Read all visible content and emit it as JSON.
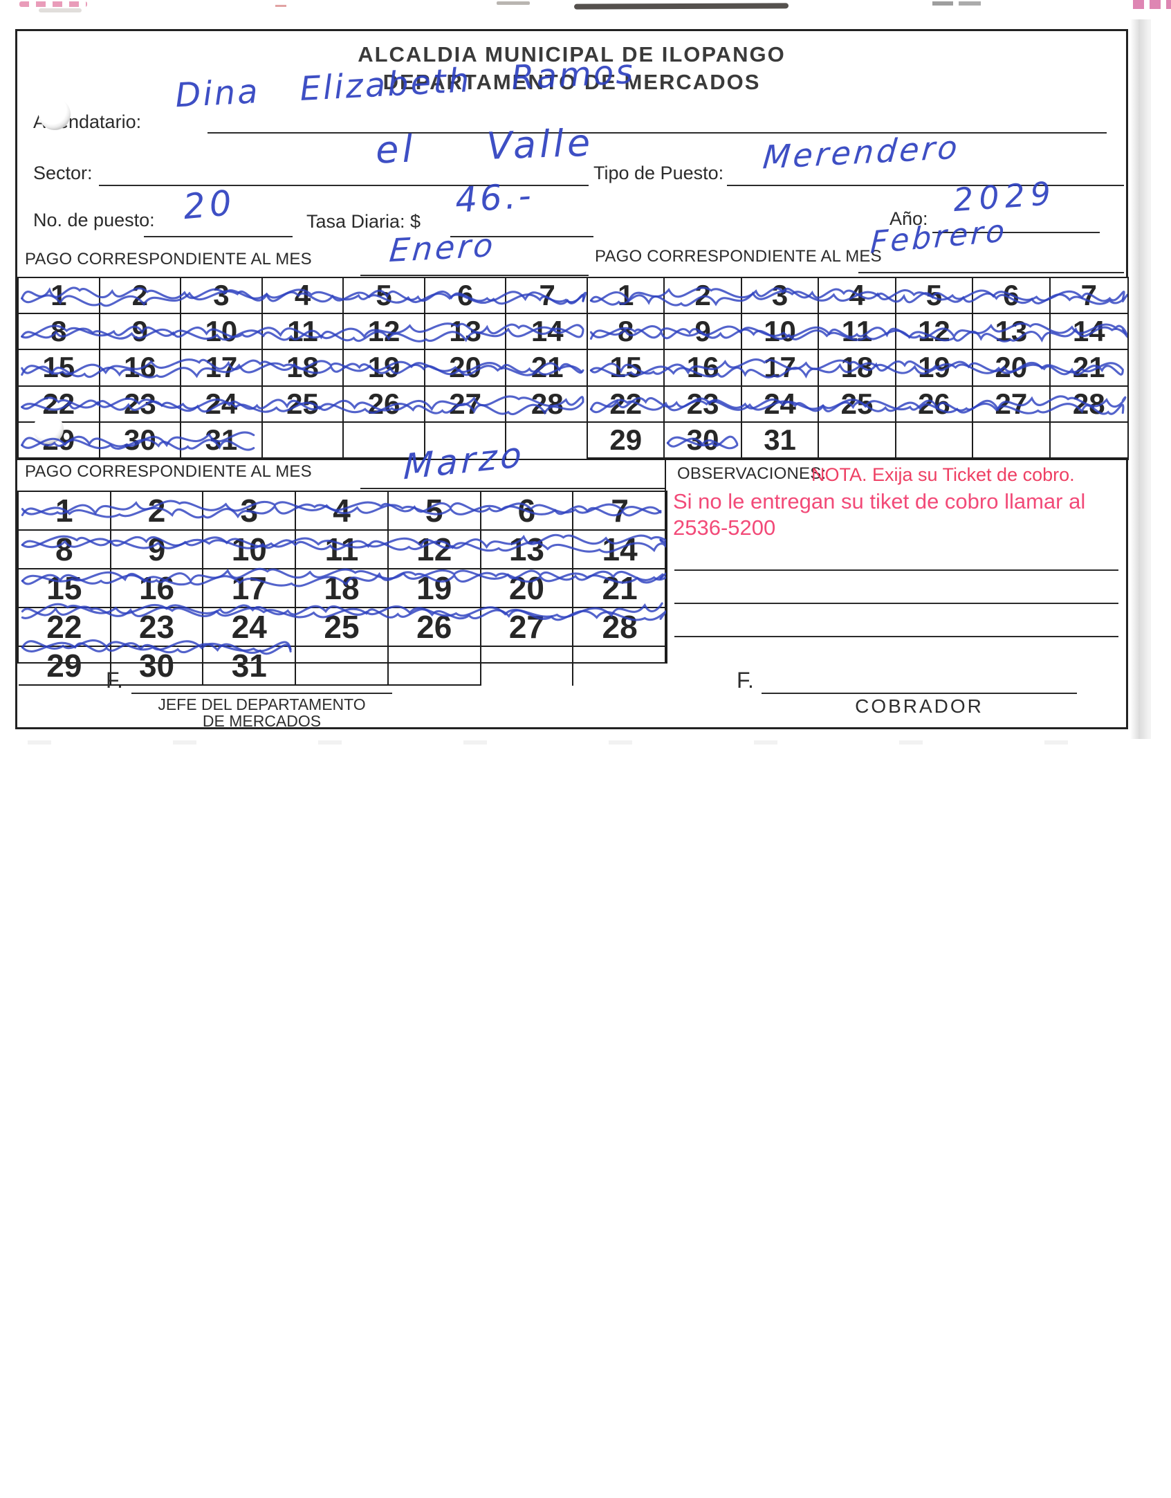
{
  "colors": {
    "ink_blue": "#2e41c0",
    "note_red": "#ee3f63",
    "note_pink": "#f24a78"
  },
  "header": {
    "title1": "ALCALDIA MUNICIPAL DE ILOPANGO",
    "title2": "DEPARTAMENTO DE MERCADOS"
  },
  "fields": {
    "arrendatario": {
      "label": "Arrendatario:",
      "value": "Dina Elizabeth Ramos"
    },
    "sector": {
      "label": "Sector:",
      "value": "el Valle"
    },
    "tipo_puesto": {
      "label": "Tipo de Puesto:",
      "value": "Merendero"
    },
    "no_puesto": {
      "label": "No. de puesto:",
      "value": "20"
    },
    "tasa_diaria": {
      "label": "Tasa Diaria: $",
      "value": "46.-"
    },
    "anio": {
      "label": "Año:",
      "value": "2029"
    }
  },
  "calendars": [
    {
      "id": "enero",
      "label": "PAGO CORRESPONDIENTE AL MES",
      "month": "Enero",
      "rows": [
        [
          [
            "1",
            1
          ],
          [
            "2",
            1
          ],
          [
            "3",
            1
          ],
          [
            "4",
            1
          ],
          [
            "5",
            1
          ],
          [
            "6",
            1
          ],
          [
            "7",
            1
          ]
        ],
        [
          [
            "8",
            1
          ],
          [
            "9",
            1
          ],
          [
            "10",
            1
          ],
          [
            "11",
            1
          ],
          [
            "12",
            1
          ],
          [
            "13",
            1
          ],
          [
            "14",
            1
          ]
        ],
        [
          [
            "15",
            1
          ],
          [
            "16",
            1
          ],
          [
            "17",
            1
          ],
          [
            "18",
            1
          ],
          [
            "19",
            1
          ],
          [
            "20",
            1
          ],
          [
            "21",
            1
          ]
        ],
        [
          [
            "22",
            1
          ],
          [
            "23",
            1
          ],
          [
            "24",
            1
          ],
          [
            "25",
            1
          ],
          [
            "26",
            1
          ],
          [
            "27",
            1
          ],
          [
            "28",
            1
          ]
        ],
        [
          [
            "29",
            1
          ],
          [
            "30",
            1
          ],
          [
            "31",
            1
          ],
          [
            "",
            0
          ],
          [
            "",
            0
          ],
          [
            "",
            0
          ],
          [
            "",
            0
          ]
        ]
      ]
    },
    {
      "id": "febrero",
      "label": "PAGO CORRESPONDIENTE AL MES",
      "month": "Febrero",
      "rows": [
        [
          [
            "1",
            1
          ],
          [
            "2",
            1
          ],
          [
            "3",
            1
          ],
          [
            "4",
            1
          ],
          [
            "5",
            1
          ],
          [
            "6",
            1
          ],
          [
            "7",
            1
          ]
        ],
        [
          [
            "8",
            1
          ],
          [
            "9",
            1
          ],
          [
            "10",
            1
          ],
          [
            "11",
            1
          ],
          [
            "12",
            1
          ],
          [
            "13",
            1
          ],
          [
            "14",
            1
          ]
        ],
        [
          [
            "15",
            1
          ],
          [
            "16",
            1
          ],
          [
            "17",
            1
          ],
          [
            "18",
            1
          ],
          [
            "19",
            1
          ],
          [
            "20",
            1
          ],
          [
            "21",
            1
          ]
        ],
        [
          [
            "22",
            1
          ],
          [
            "23",
            1
          ],
          [
            "24",
            1
          ],
          [
            "25",
            1
          ],
          [
            "26",
            1
          ],
          [
            "27",
            1
          ],
          [
            "28",
            1
          ]
        ],
        [
          [
            "29",
            0
          ],
          [
            "30",
            1
          ],
          [
            "31",
            0
          ],
          [
            "",
            0
          ],
          [
            "",
            0
          ],
          [
            "",
            0
          ],
          [
            "",
            0
          ]
        ]
      ]
    },
    {
      "id": "marzo",
      "label": "PAGO CORRESPONDIENTE AL MES",
      "month": "Marzo",
      "rows": [
        [
          [
            "1",
            1
          ],
          [
            "2",
            1
          ],
          [
            "3",
            1
          ],
          [
            "4",
            1
          ],
          [
            "5",
            1
          ],
          [
            "6",
            1
          ],
          [
            "7",
            1
          ]
        ],
        [
          [
            "8",
            1
          ],
          [
            "9",
            1
          ],
          [
            "10",
            1
          ],
          [
            "11",
            1
          ],
          [
            "12",
            1
          ],
          [
            "13",
            1
          ],
          [
            "14",
            1
          ]
        ],
        [
          [
            "15",
            1
          ],
          [
            "16",
            1
          ],
          [
            "17",
            1
          ],
          [
            "18",
            1
          ],
          [
            "19",
            1
          ],
          [
            "20",
            1
          ],
          [
            "21",
            1
          ]
        ],
        [
          [
            "22",
            1
          ],
          [
            "23",
            1
          ],
          [
            "24",
            1
          ],
          [
            "25",
            1
          ],
          [
            "26",
            1
          ],
          [
            "27",
            1
          ],
          [
            "28",
            1
          ]
        ],
        [
          [
            "29",
            1
          ],
          [
            "30",
            1
          ],
          [
            "31",
            1
          ],
          [
            "",
            0
          ],
          [
            "",
            0
          ],
          [
            "",
            0
          ],
          [
            "",
            0
          ]
        ]
      ]
    }
  ],
  "observaciones": {
    "label": "OBSERVACIONES:",
    "nota": "NOTA. Exija su Ticket  de cobro.",
    "line2": "Si no le entregan su tiket de cobro llamar al",
    "phone": "2536-5200"
  },
  "footer": {
    "left": {
      "f": "F.",
      "role1": "JEFE DEL DEPARTAMENTO",
      "role2": "DE MERCADOS"
    },
    "right": {
      "f": "F.",
      "role": "COBRADOR"
    }
  }
}
